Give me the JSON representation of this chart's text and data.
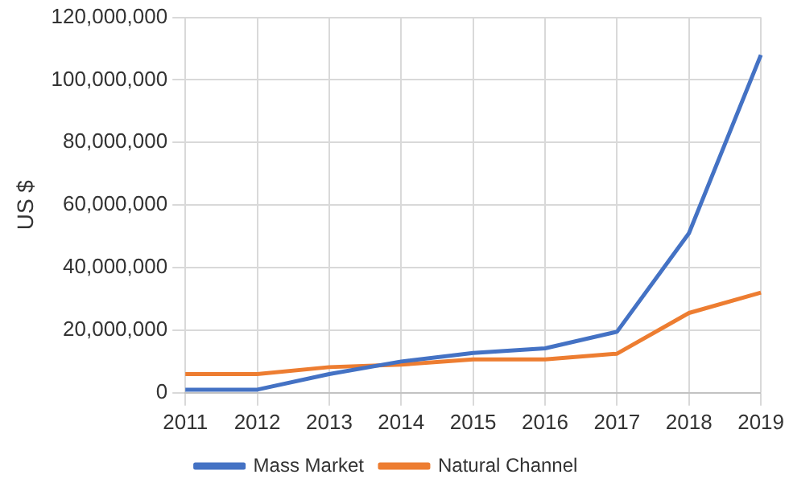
{
  "chart_data": {
    "type": "line",
    "ylabel": "US $",
    "categories": [
      "2011",
      "2012",
      "2013",
      "2014",
      "2015",
      "2016",
      "2017",
      "2018",
      "2019"
    ],
    "series": [
      {
        "name": "Mass Market",
        "color": "#4472c4",
        "values": [
          1000000,
          1000000,
          6000000,
          10000000,
          12700000,
          14200000,
          19500000,
          51000000,
          108000000
        ]
      },
      {
        "name": "Natural Channel",
        "color": "#ed7d31",
        "values": [
          6000000,
          6000000,
          8200000,
          9000000,
          10700000,
          10700000,
          12500000,
          25500000,
          32000000
        ]
      }
    ],
    "ylim": [
      0,
      120000000
    ],
    "yticks": [
      0,
      {
        "value": 20000000,
        "label": "20,000,000"
      },
      {
        "value": 40000000,
        "label": "40,000,000"
      },
      {
        "value": 60000000,
        "label": "60,000,000"
      },
      {
        "value": 80000000,
        "label": "80,000,000"
      },
      {
        "value": 100000000,
        "label": "100,000,000"
      },
      {
        "value": 120000000,
        "label": "120,000,000"
      }
    ],
    "grid": true,
    "legend": "bottom",
    "marker": "none",
    "line_style": "solid"
  }
}
